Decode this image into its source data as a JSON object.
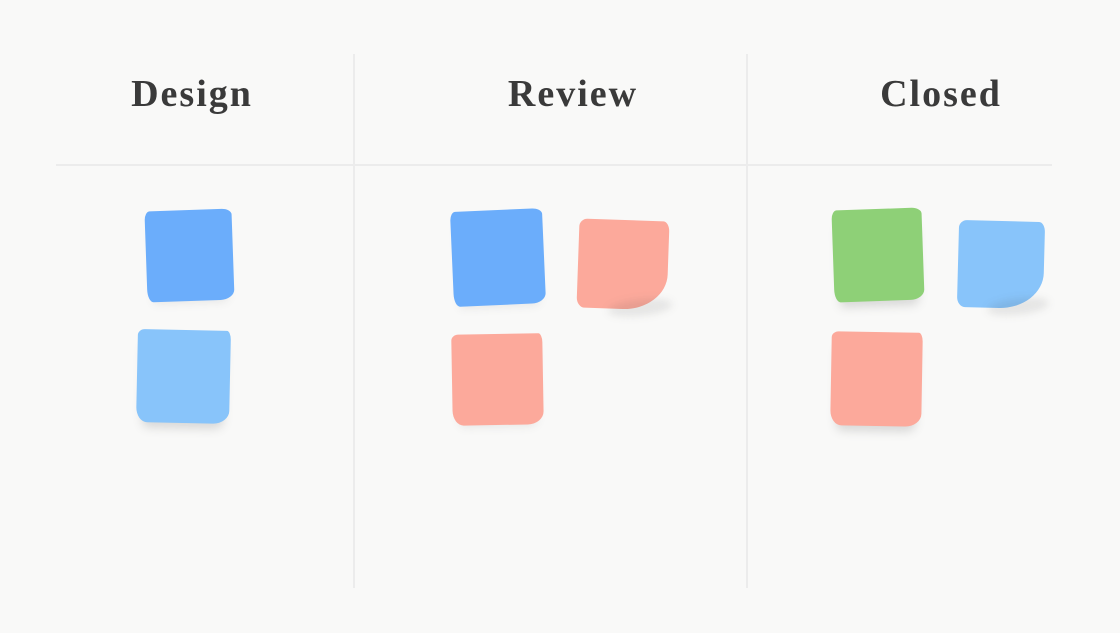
{
  "board": {
    "columns": [
      {
        "title": "Design",
        "notes": [
          {
            "color_name": "blue",
            "hex": "#6badfb"
          },
          {
            "color_name": "light-blue",
            "hex": "#88c4fa"
          }
        ]
      },
      {
        "title": "Review",
        "notes": [
          {
            "color_name": "blue",
            "hex": "#6badfb"
          },
          {
            "color_name": "salmon",
            "hex": "#fca99b"
          },
          {
            "color_name": "salmon",
            "hex": "#fca99b"
          }
        ]
      },
      {
        "title": "Closed",
        "notes": [
          {
            "color_name": "green",
            "hex": "#8ed077"
          },
          {
            "color_name": "light-blue",
            "hex": "#88c4fa"
          },
          {
            "color_name": "salmon",
            "hex": "#fca99b"
          }
        ]
      }
    ]
  },
  "theme": {
    "background": "#f9f9f8",
    "divider": "#ececec",
    "header_text": "#3a3a3a"
  }
}
